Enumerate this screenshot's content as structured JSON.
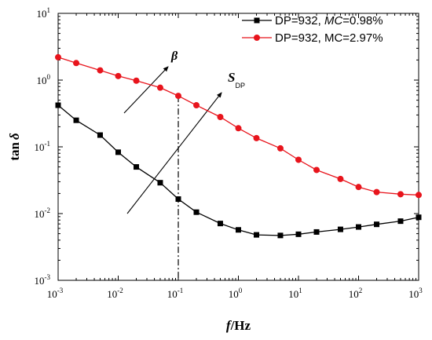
{
  "chart_data": {
    "type": "line",
    "xscale": "log",
    "yscale": "log",
    "xlim": [
      0.001,
      1000
    ],
    "ylim": [
      0.001,
      10
    ],
    "x_ticks": [
      {
        "base": "10",
        "exp": "-3"
      },
      {
        "base": "10",
        "exp": "-2"
      },
      {
        "base": "10",
        "exp": "-1"
      },
      {
        "base": "10",
        "exp": "0"
      },
      {
        "base": "10",
        "exp": "1"
      },
      {
        "base": "10",
        "exp": "2"
      },
      {
        "base": "10",
        "exp": "3"
      }
    ],
    "y_ticks": [
      {
        "base": "10",
        "exp": "-3"
      },
      {
        "base": "10",
        "exp": "-2"
      },
      {
        "base": "10",
        "exp": "-1"
      },
      {
        "base": "10",
        "exp": "0"
      },
      {
        "base": "10",
        "exp": "1"
      }
    ],
    "xlabel": {
      "var": "f",
      "rest": "/Hz"
    },
    "ylabel": {
      "prefix": "tan",
      "var": "δ"
    },
    "legend_position": "top-right",
    "series": [
      {
        "name_parts": [
          "DP=932, ",
          "MC",
          "=0.98%"
        ],
        "marker": "square",
        "color": "#000000",
        "x": [
          0.001,
          0.002,
          0.005,
          0.01,
          0.02,
          0.05,
          0.1,
          0.2,
          0.5,
          1,
          2,
          5,
          10,
          20,
          50,
          100,
          200,
          500,
          1000
        ],
        "y": [
          0.42,
          0.25,
          0.15,
          0.083,
          0.05,
          0.029,
          0.0165,
          0.0105,
          0.0071,
          0.0057,
          0.0048,
          0.0047,
          0.0049,
          0.0053,
          0.0058,
          0.0063,
          0.0069,
          0.0077,
          0.0088
        ]
      },
      {
        "name_parts": [
          "DP=932, MC=2.97%"
        ],
        "marker": "circle",
        "color": "#e8141c",
        "x": [
          0.001,
          0.002,
          0.005,
          0.01,
          0.02,
          0.05,
          0.1,
          0.2,
          0.5,
          1,
          2,
          5,
          10,
          20,
          50,
          100,
          200,
          500,
          1000
        ],
        "y": [
          2.2,
          1.8,
          1.4,
          1.15,
          0.98,
          0.77,
          0.58,
          0.42,
          0.28,
          0.19,
          0.135,
          0.095,
          0.064,
          0.045,
          0.033,
          0.025,
          0.021,
          0.0195,
          0.019
        ]
      }
    ],
    "annotations": {
      "beta": "β",
      "s_dp": "S",
      "s_dp_sub": "DP"
    },
    "vline_x": 0.1
  }
}
